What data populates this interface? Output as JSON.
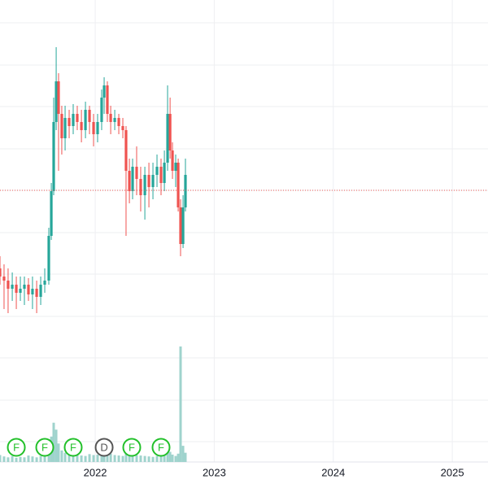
{
  "chart_data": {
    "type": "candlestick",
    "x": [
      2021.2,
      2021.234,
      2021.268,
      2021.303,
      2021.337,
      2021.371,
      2021.405,
      2021.439,
      2021.473,
      2021.508,
      2021.542,
      2021.576,
      2021.61,
      2021.631,
      2021.651,
      2021.672,
      2021.692,
      2021.719,
      2021.747,
      2021.781,
      2021.815,
      2021.849,
      2021.884,
      2021.918,
      2021.952,
      2021.986,
      2022.02,
      2022.054,
      2022.075,
      2022.102,
      2022.13,
      2022.164,
      2022.198,
      2022.232,
      2022.259,
      2022.287,
      2022.314,
      2022.348,
      2022.382,
      2022.417,
      2022.451,
      2022.485,
      2022.519,
      2022.553,
      2022.581,
      2022.608,
      2022.629,
      2022.649,
      2022.676,
      2022.697,
      2022.717,
      2022.738,
      2022.758
    ],
    "open": [
      23.8,
      22.8,
      22.3,
      21.3,
      21.8,
      20.8,
      21.3,
      21.8,
      20.6,
      21.3,
      20.3,
      21.8,
      22.3,
      27.8,
      33.3,
      41.8,
      46.8,
      42.8,
      39.8,
      42.3,
      41.3,
      42.8,
      41.8,
      40.8,
      43.3,
      41.8,
      40.3,
      41.8,
      44.8,
      46.3,
      42.8,
      41.8,
      42.3,
      41.3,
      40.8,
      35.8,
      33.3,
      36.3,
      34.8,
      32.8,
      35.3,
      33.8,
      35.3,
      36.3,
      34.3,
      36.8,
      42.8,
      38.3,
      35.8,
      36.8,
      31.3,
      26.8,
      31.3
    ],
    "high": [
      25.3,
      24.3,
      23.8,
      23.3,
      22.8,
      22.8,
      22.8,
      22.6,
      22.8,
      22.3,
      22.8,
      23.8,
      28.8,
      34.3,
      44.8,
      51.0,
      47.8,
      43.8,
      43.8,
      43.3,
      44.0,
      43.8,
      43.3,
      44.3,
      43.8,
      42.8,
      42.8,
      45.8,
      47.3,
      46.8,
      43.8,
      43.3,
      42.8,
      42.3,
      41.3,
      37.3,
      37.3,
      38.8,
      36.3,
      36.3,
      36.8,
      36.8,
      37.8,
      37.3,
      38.3,
      46.3,
      44.8,
      39.3,
      37.8,
      37.3,
      32.3,
      32.8,
      37.3
    ],
    "low": [
      21.8,
      18.8,
      18.3,
      19.8,
      18.8,
      19.8,
      19.3,
      19.8,
      18.8,
      18.3,
      19.3,
      20.8,
      21.8,
      27.3,
      32.8,
      40.8,
      35.8,
      37.8,
      38.3,
      39.8,
      40.3,
      40.8,
      39.3,
      39.8,
      40.3,
      38.8,
      39.3,
      40.8,
      42.8,
      41.8,
      40.3,
      40.8,
      40.3,
      39.8,
      27.8,
      31.8,
      32.3,
      32.8,
      30.8,
      29.8,
      31.3,
      32.3,
      33.8,
      32.8,
      33.3,
      35.8,
      37.3,
      34.8,
      33.8,
      30.8,
      25.3,
      26.3,
      30.8
    ],
    "close": [
      22.8,
      22.3,
      21.3,
      21.8,
      20.8,
      21.3,
      21.8,
      20.6,
      21.3,
      20.3,
      21.8,
      22.3,
      27.8,
      33.3,
      41.8,
      46.8,
      42.8,
      39.8,
      42.3,
      41.3,
      42.8,
      41.8,
      40.8,
      43.3,
      41.8,
      40.3,
      41.8,
      44.8,
      46.3,
      42.8,
      41.8,
      42.3,
      41.3,
      40.8,
      35.8,
      33.3,
      36.3,
      34.8,
      32.8,
      35.3,
      33.8,
      35.3,
      36.3,
      34.3,
      36.8,
      42.8,
      38.3,
      35.8,
      36.8,
      31.3,
      26.8,
      31.3,
      35.3
    ],
    "volume": [
      1.5,
      1.2,
      1.0,
      1.3,
      0.9,
      1.1,
      1.0,
      1.4,
      1.2,
      1.0,
      1.3,
      1.6,
      3.5,
      5.5,
      8.5,
      7.0,
      4.0,
      2.5,
      2.0,
      1.8,
      1.6,
      1.5,
      1.4,
      1.3,
      1.7,
      1.5,
      1.6,
      2.8,
      3.2,
      2.4,
      1.8,
      1.5,
      1.4,
      1.3,
      2.2,
      1.9,
      1.6,
      1.5,
      1.4,
      1.3,
      1.2,
      1.1,
      1.3,
      1.4,
      1.5,
      3.0,
      2.2,
      1.6,
      1.3,
      1.8,
      25.0,
      3.5,
      2.0
    ],
    "up_color": "#26a69a",
    "down_color": "#ef5350",
    "volume_color": "#9fd3cd",
    "xlim": [
      2021.2,
      2025.3
    ],
    "xticks": [
      2022,
      2023,
      2024,
      2025
    ],
    "ylim": [
      0,
      56.8
    ],
    "y2lim": [
      0,
      100
    ],
    "last_price": 33.4,
    "last_price_color": "#ef5350",
    "grid": true,
    "events": [
      {
        "x": 2021.337,
        "label": "F",
        "color": "#22c02a"
      },
      {
        "x": 2021.576,
        "label": "F",
        "color": "#22c02a"
      },
      {
        "x": 2021.815,
        "label": "F",
        "color": "#22c02a"
      },
      {
        "x": 2022.075,
        "label": "D",
        "color": "#555555"
      },
      {
        "x": 2022.307,
        "label": "F",
        "color": "#22c02a"
      },
      {
        "x": 2022.553,
        "label": "F",
        "color": "#22c02a"
      }
    ]
  }
}
